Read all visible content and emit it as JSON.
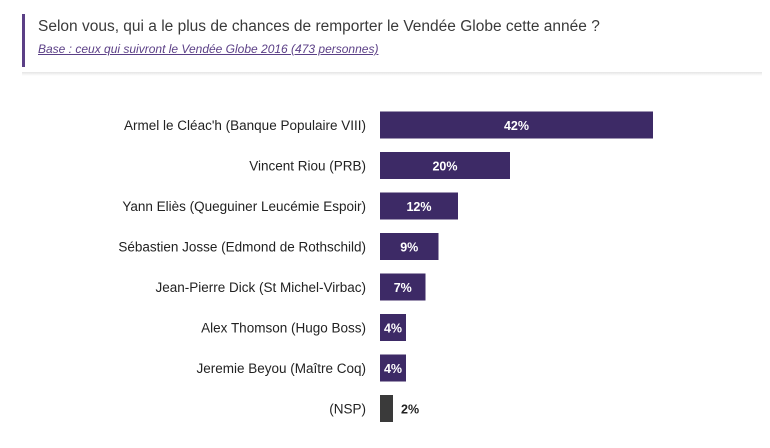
{
  "header": {
    "title": "Selon vous, qui a le plus de chances de remporter le Vendée Globe cette année ?",
    "subtitle": "Base : ceux qui suivront le Vendée Globe 2016 (473 personnes)"
  },
  "chart_data": {
    "type": "bar",
    "orientation": "horizontal",
    "categories": [
      "Armel le Cléac'h (Banque Populaire VIII)",
      "Vincent Riou (PRB)",
      "Yann Eliès (Queguiner Leucémie Espoir)",
      "Sébastien Josse (Edmond de Rothschild)",
      "Jean-Pierre Dick (St Michel-Virbac)",
      "Alex Thomson (Hugo Boss)",
      "Jeremie Beyou (Maître Coq)",
      "(NSP)"
    ],
    "values": [
      42,
      20,
      12,
      9,
      7,
      4,
      4,
      2
    ],
    "value_labels": [
      "42%",
      "20%",
      "12%",
      "9%",
      "7%",
      "4%",
      "4%",
      "2%"
    ],
    "unit": "%",
    "bar_colors": [
      "#3d2a66",
      "#3d2a66",
      "#3d2a66",
      "#3d2a66",
      "#3d2a66",
      "#3d2a66",
      "#3d2a66",
      "#3a3a3a"
    ],
    "grid": false,
    "legend": "none"
  },
  "colors": {
    "accent": "#5b3f86",
    "bar": "#3d2a66",
    "nsp_bar": "#3a3a3a"
  }
}
